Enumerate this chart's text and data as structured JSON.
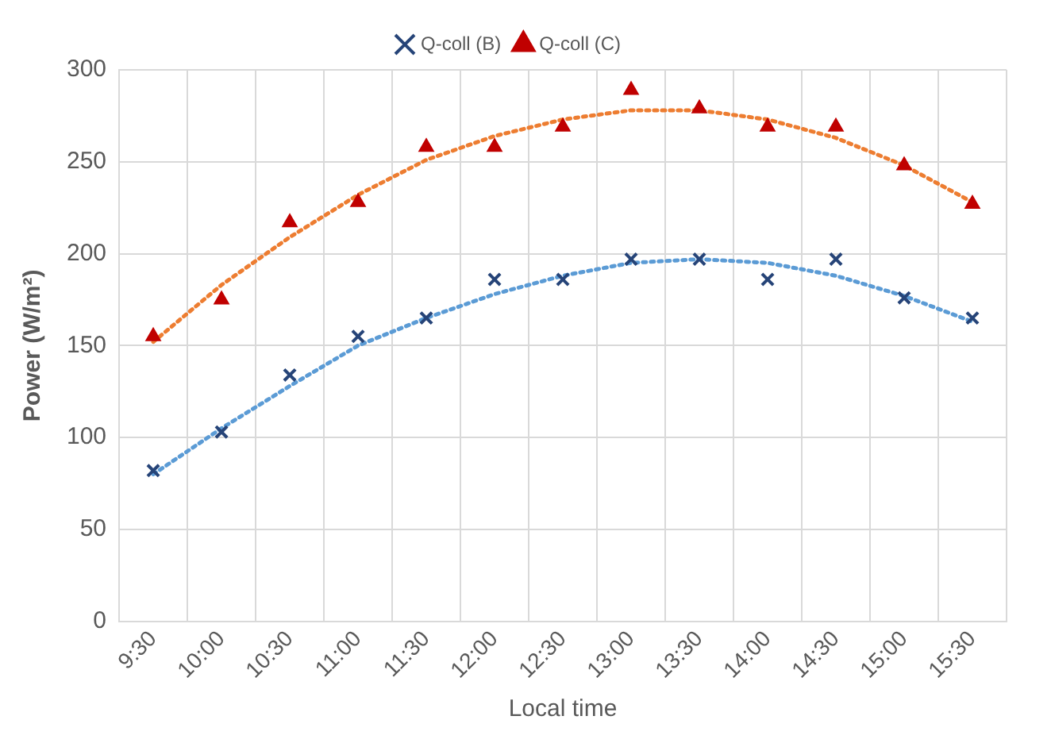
{
  "chart_data": {
    "type": "scatter",
    "xlabel": "Local time",
    "ylabel": "Power (W/m²)",
    "categories": [
      "9:30",
      "10:00",
      "10:30",
      "11:00",
      "11:30",
      "12:00",
      "12:30",
      "13:00",
      "13:30",
      "14:00",
      "14:30",
      "15:00",
      "15:30"
    ],
    "series": [
      {
        "name": "Q-coll (B)",
        "color": "#264478",
        "marker": "cross",
        "values": [
          82,
          103,
          134,
          155,
          165,
          186,
          186,
          197,
          197,
          186,
          197,
          176,
          165
        ]
      },
      {
        "name": "Q-coll (C)",
        "color": "#c00000",
        "marker": "triangle",
        "values": [
          155,
          175,
          217,
          228,
          258,
          258,
          269,
          289,
          279,
          269,
          269,
          248,
          227
        ]
      },
      {
        "type": "line",
        "color": "#5b9bd5",
        "marker": "none",
        "line_style": "dotted",
        "values": [
          80,
          105,
          128,
          150,
          165,
          178,
          188,
          195,
          197,
          195,
          188,
          177,
          163
        ]
      },
      {
        "type": "line",
        "color": "#ed7d31",
        "marker": "none",
        "line_style": "dotted",
        "values": [
          152,
          183,
          209,
          232,
          251,
          264,
          273,
          278,
          278,
          273,
          263,
          248,
          228
        ]
      }
    ],
    "ylim": [
      0,
      300
    ],
    "yticks": [
      0,
      50,
      100,
      150,
      200,
      250,
      300
    ],
    "grid": true,
    "legend": "top"
  }
}
